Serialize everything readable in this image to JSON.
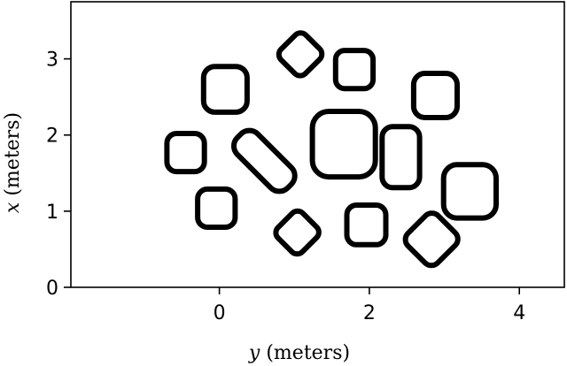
{
  "chart_data": {
    "type": "scatter",
    "xlabel": {
      "var": "y",
      "unit": " (meters)"
    },
    "ylabel": {
      "var": "x",
      "unit": " (meters)"
    },
    "xlim": [
      -1.98,
      4.6
    ],
    "ylim": [
      0,
      3.75
    ],
    "xticks": [
      0,
      2,
      4
    ],
    "yticks": [
      0,
      1,
      2,
      3
    ],
    "grid": false,
    "legend": false,
    "colors": {
      "stroke": "#000000",
      "background": "#ffffff"
    },
    "objects": [
      {
        "shape": "rounded-square",
        "x": -0.45,
        "y": 1.77,
        "w": 0.5,
        "h": 0.5,
        "r": 0.13,
        "rotation": 0
      },
      {
        "shape": "rounded-square",
        "x": -0.04,
        "y": 1.04,
        "w": 0.5,
        "h": 0.5,
        "r": 0.13,
        "rotation": 0
      },
      {
        "shape": "rounded-square",
        "x": 0.08,
        "y": 2.6,
        "w": 0.58,
        "h": 0.6,
        "r": 0.15,
        "rotation": 0
      },
      {
        "shape": "rounded-rect",
        "x": 0.6,
        "y": 1.66,
        "w": 0.95,
        "h": 0.38,
        "r": 0.16,
        "rotation": 45
      },
      {
        "shape": "diamond",
        "x": 1.08,
        "y": 3.06,
        "w": 0.46,
        "h": 0.46,
        "r": 0.1,
        "rotation": 45
      },
      {
        "shape": "diamond",
        "x": 1.04,
        "y": 0.72,
        "w": 0.46,
        "h": 0.46,
        "r": 0.1,
        "rotation": 45
      },
      {
        "shape": "rounded-square",
        "x": 1.66,
        "y": 1.88,
        "w": 0.84,
        "h": 0.86,
        "r": 0.22,
        "rotation": 0
      },
      {
        "shape": "rounded-square",
        "x": 1.8,
        "y": 2.86,
        "w": 0.5,
        "h": 0.5,
        "r": 0.12,
        "rotation": 0
      },
      {
        "shape": "rounded-square",
        "x": 1.96,
        "y": 0.82,
        "w": 0.52,
        "h": 0.52,
        "r": 0.13,
        "rotation": 0
      },
      {
        "shape": "rounded-rect",
        "x": 2.42,
        "y": 1.71,
        "w": 0.5,
        "h": 0.8,
        "r": 0.14,
        "rotation": 0
      },
      {
        "shape": "rounded-square",
        "x": 2.88,
        "y": 2.52,
        "w": 0.58,
        "h": 0.58,
        "r": 0.15,
        "rotation": 0
      },
      {
        "shape": "diamond",
        "x": 2.83,
        "y": 0.63,
        "w": 0.56,
        "h": 0.56,
        "r": 0.12,
        "rotation": 45
      },
      {
        "shape": "rounded-square",
        "x": 3.34,
        "y": 1.26,
        "w": 0.7,
        "h": 0.7,
        "r": 0.18,
        "rotation": 0
      }
    ]
  }
}
